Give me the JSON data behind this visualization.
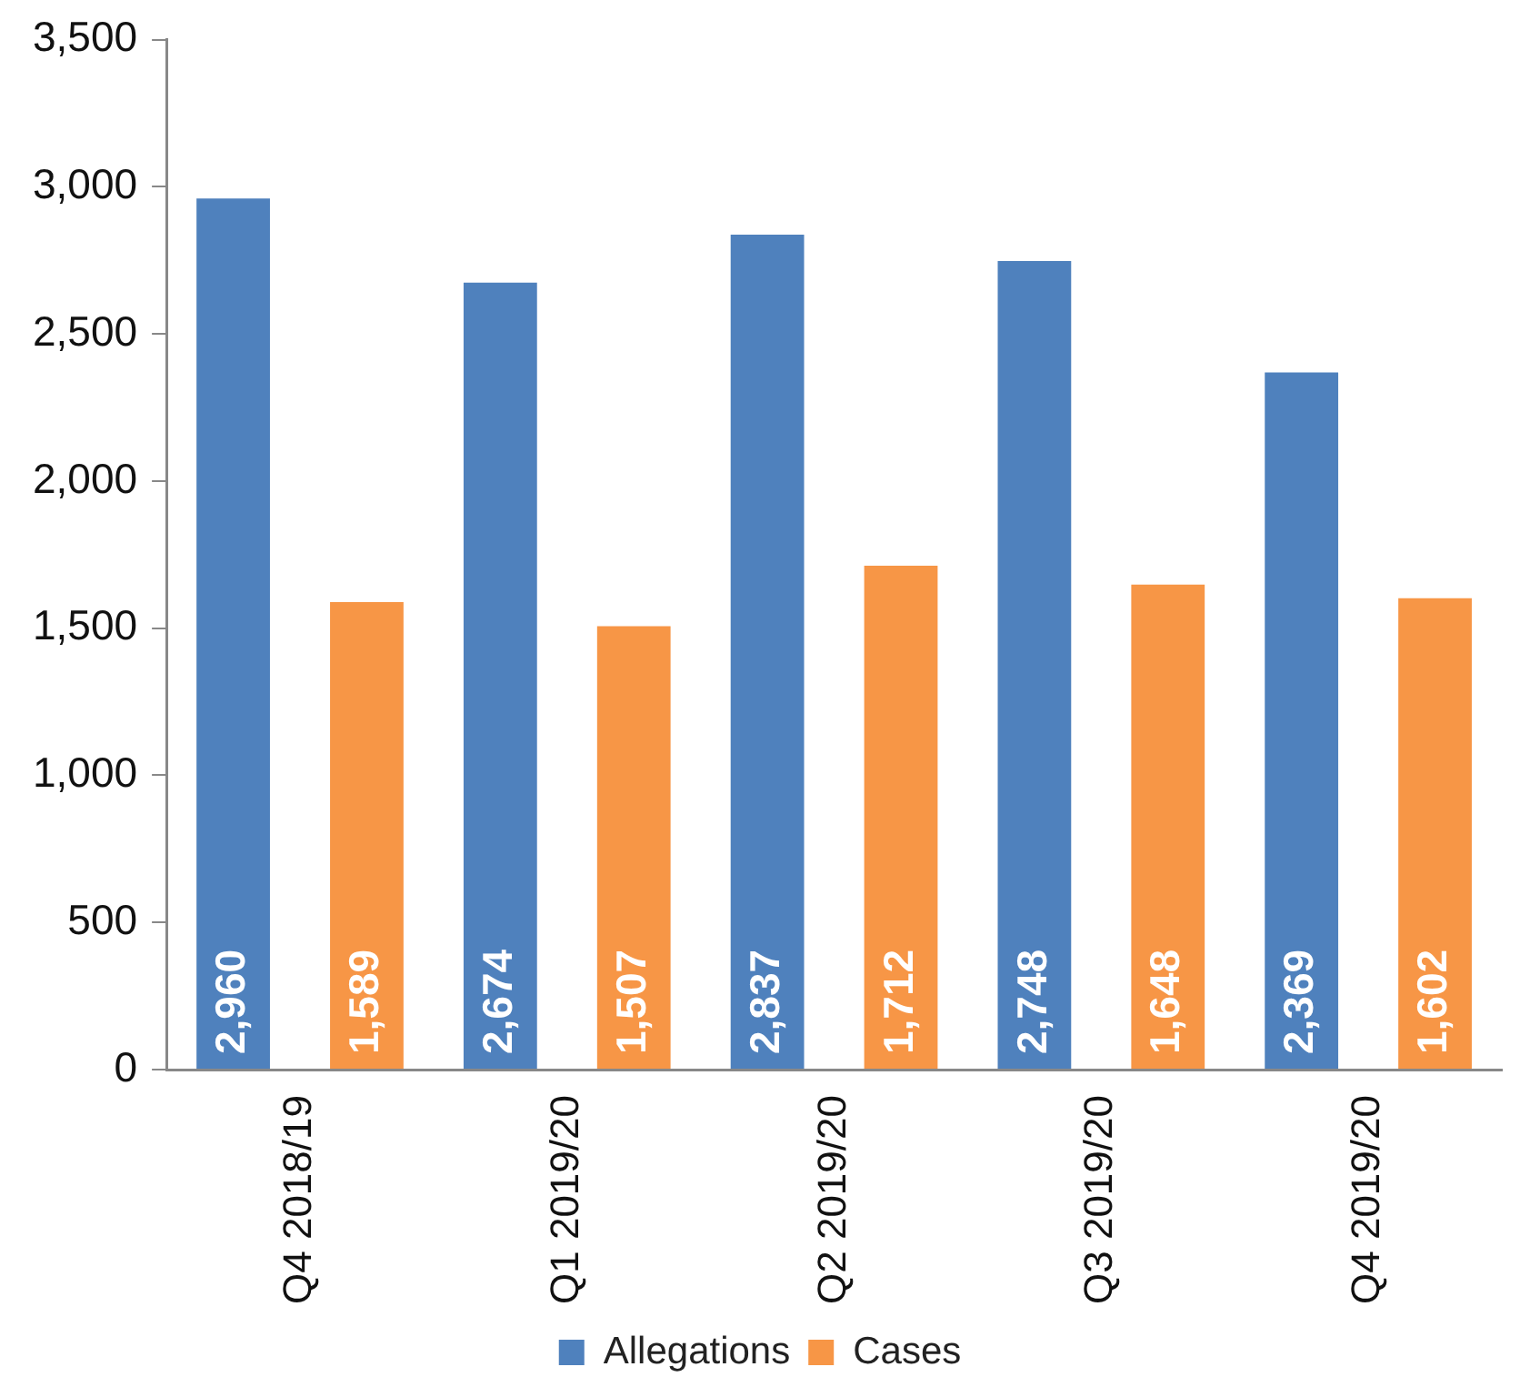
{
  "chart_data": {
    "type": "bar",
    "categories": [
      "Q4 2018/19",
      "Q1 2019/20",
      "Q2 2019/20",
      "Q3 2019/20",
      "Q4 2019/20"
    ],
    "series": [
      {
        "name": "Allegations",
        "color": "#4f81bd",
        "values": [
          2960,
          2674,
          2837,
          2748,
          2369
        ],
        "value_labels": [
          "2,960",
          "2,674",
          "2,837",
          "2,748",
          "2,369"
        ]
      },
      {
        "name": "Cases",
        "color": "#f79646",
        "values": [
          1589,
          1507,
          1712,
          1648,
          1602
        ],
        "value_labels": [
          "1,589",
          "1,507",
          "1,712",
          "1,648",
          "1,602"
        ]
      }
    ],
    "ylim": [
      0,
      3500
    ],
    "yticks": [
      0,
      500,
      {
        "value": 1000,
        "label": "1,000"
      },
      {
        "value": 1500,
        "label": "1,500"
      },
      {
        "value": 2000,
        "label": "2,000"
      },
      {
        "value": 2500,
        "label": "2,500"
      },
      {
        "value": 3000,
        "label": "3,000"
      },
      {
        "value": 3500,
        "label": "3,500"
      }
    ],
    "grid": false,
    "legend": "bottom"
  }
}
